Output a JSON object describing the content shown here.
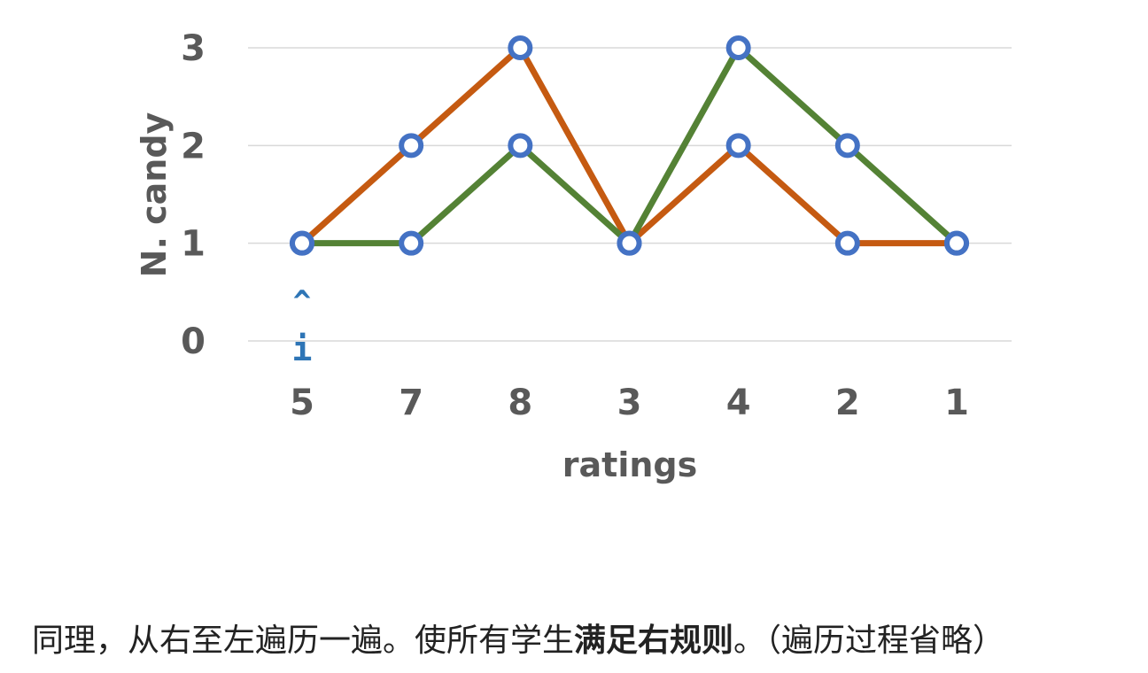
{
  "chart_data": {
    "type": "line",
    "categories": [
      "5",
      "7",
      "8",
      "3",
      "4",
      "2",
      "1"
    ],
    "series": [
      {
        "values": [
          1,
          2,
          3,
          1,
          2,
          1,
          1
        ],
        "color": "#c55a11"
      },
      {
        "values": [
          1,
          1,
          2,
          1,
          3,
          2,
          1
        ],
        "color": "#548235"
      }
    ],
    "marker_color": "#4472c4",
    "xlabel": "ratings",
    "ylabel": "N. candy",
    "yticks": [
      "0",
      "1",
      "2",
      "3"
    ],
    "ylim": [
      0,
      3
    ],
    "grid": true,
    "pointer": {
      "caret": "^",
      "label": "i",
      "category_index": 0
    }
  },
  "caption": {
    "prefix": "同理，从右至左遍历一遍。使所有学生",
    "bold": "满足右规则",
    "suffix": "。（遍历过程省略）"
  }
}
